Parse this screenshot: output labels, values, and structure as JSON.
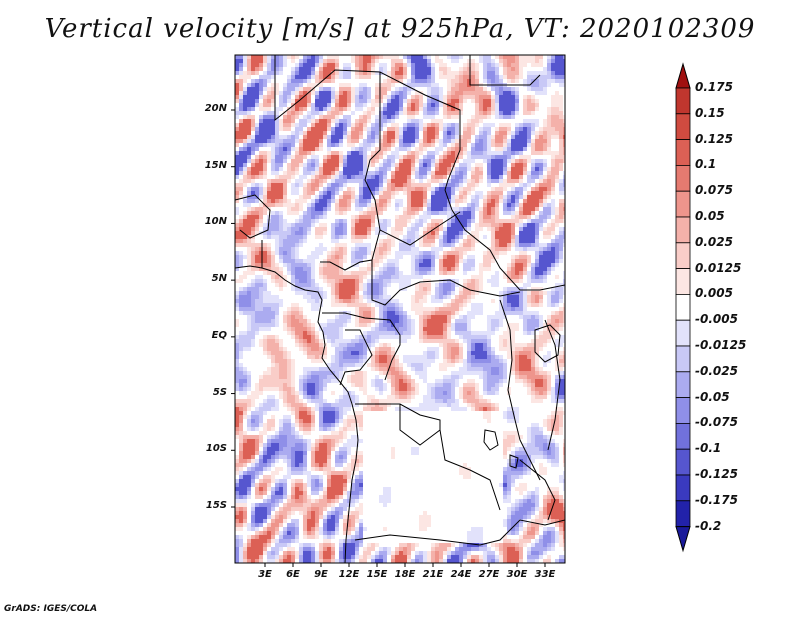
{
  "title": "Vertical velocity [m/s] at 925hPa, VT: 2020102309",
  "footer": "GrADS: IGES/COLA",
  "y_axis": {
    "ticks": [
      {
        "value": 20,
        "label": "20N"
      },
      {
        "value": 15,
        "label": "15N"
      },
      {
        "value": 10,
        "label": "10N"
      },
      {
        "value": 5,
        "label": "5N"
      },
      {
        "value": 0,
        "label": "EQ"
      },
      {
        "value": -5,
        "label": "5S"
      },
      {
        "value": -10,
        "label": "10S"
      },
      {
        "value": -15,
        "label": "15S"
      }
    ]
  },
  "x_axis": {
    "ticks": [
      {
        "value": 3,
        "label": "3E"
      },
      {
        "value": 6,
        "label": "6E"
      },
      {
        "value": 9,
        "label": "9E"
      },
      {
        "value": 12,
        "label": "12E"
      },
      {
        "value": 15,
        "label": "15E"
      },
      {
        "value": 18,
        "label": "18E"
      },
      {
        "value": 21,
        "label": "21E"
      },
      {
        "value": 24,
        "label": "24E"
      },
      {
        "value": 27,
        "label": "27E"
      },
      {
        "value": 30,
        "label": "30E"
      },
      {
        "value": 33,
        "label": "33E"
      }
    ]
  },
  "colorbar": {
    "levels": [
      {
        "label": "0.175",
        "color": "#b22222"
      },
      {
        "label": "0.15",
        "color": "#c0362e"
      },
      {
        "label": "0.125",
        "color": "#d04b40"
      },
      {
        "label": "0.1",
        "color": "#dc6055"
      },
      {
        "label": "0.075",
        "color": "#e57a70"
      },
      {
        "label": "0.05",
        "color": "#ee958c"
      },
      {
        "label": "0.025",
        "color": "#f4b1aa"
      },
      {
        "label": "0.0125",
        "color": "#f9cdc8"
      },
      {
        "label": "0.005",
        "color": "#fce6e3"
      },
      {
        "label": "-0.005",
        "color": "#ffffff"
      },
      {
        "label": "-0.0125",
        "color": "#e2e2fb"
      },
      {
        "label": "-0.025",
        "color": "#c8c8f6"
      },
      {
        "label": "-0.05",
        "color": "#ababf0"
      },
      {
        "label": "-0.075",
        "color": "#8f8fe8"
      },
      {
        "label": "-0.1",
        "color": "#7171dc"
      },
      {
        "label": "-0.125",
        "color": "#5656cf"
      },
      {
        "label": "-0.175",
        "color": "#3a3abf"
      },
      {
        "label": "-0.2",
        "color": "#2222aa"
      }
    ],
    "top_cap_color": "#a01010",
    "bottom_cap_color": "#1a1a9a"
  },
  "chart_data": {
    "type": "heatmap",
    "title": "Vertical velocity [m/s] at 925hPa, VT: 2020102309",
    "variable": "Vertical velocity",
    "units": "m/s",
    "level": "925hPa",
    "valid_time": "2020102309",
    "lon_range": [
      0,
      35
    ],
    "lat_range": [
      -20,
      25
    ],
    "xlabel": "",
    "ylabel": ""
  }
}
